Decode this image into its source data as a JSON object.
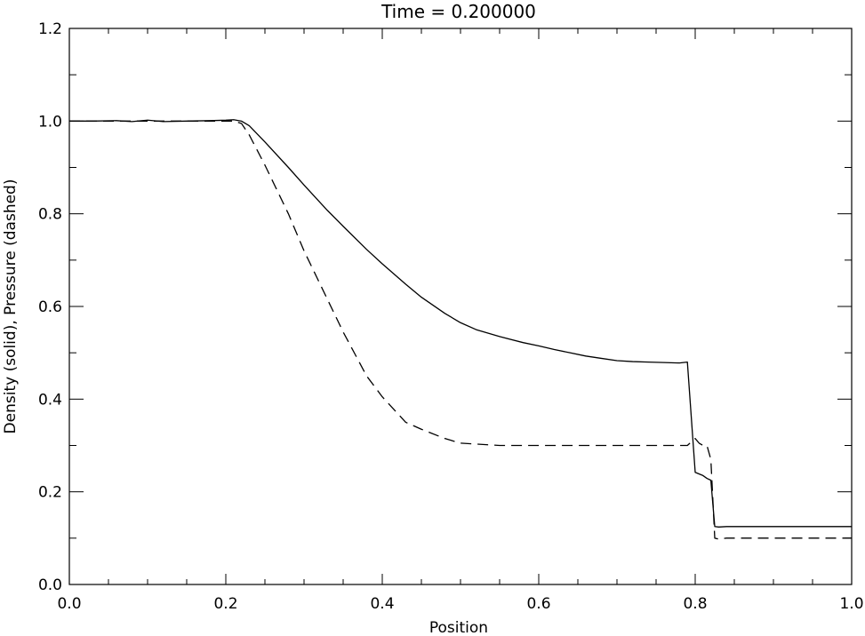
{
  "chart_data": {
    "type": "line",
    "title": "Time  =  0.200000",
    "xlabel": "Position",
    "ylabel": "Density (solid), Pressure (dashed)",
    "xlim": [
      0.0,
      1.0
    ],
    "ylim": [
      0.0,
      1.2
    ],
    "grid": false,
    "x_ticks": [
      0.0,
      0.2,
      0.4,
      0.6,
      0.8,
      1.0
    ],
    "x_tick_labels": [
      "0.0",
      "0.2",
      "0.4",
      "0.6",
      "0.8",
      "1.0"
    ],
    "y_ticks": [
      0.0,
      0.2,
      0.4,
      0.6,
      0.8,
      1.0,
      1.2
    ],
    "y_tick_labels": [
      "0.0",
      "0.2",
      "0.4",
      "0.6",
      "0.8",
      "1.0",
      "1.2"
    ],
    "series": [
      {
        "style": "solid",
        "color": "#000000",
        "x": [
          0.0,
          0.03,
          0.06,
          0.08,
          0.1,
          0.12,
          0.15,
          0.18,
          0.2,
          0.21,
          0.22,
          0.23,
          0.25,
          0.28,
          0.3,
          0.33,
          0.35,
          0.38,
          0.4,
          0.43,
          0.45,
          0.48,
          0.5,
          0.52,
          0.55,
          0.58,
          0.6,
          0.62,
          0.64,
          0.66,
          0.68,
          0.7,
          0.72,
          0.74,
          0.76,
          0.78,
          0.79,
          0.8,
          0.81,
          0.815,
          0.82,
          0.825,
          0.83,
          0.84,
          0.86,
          0.9,
          0.95,
          1.0
        ],
        "y": [
          1.0,
          1.0,
          1.001,
          0.999,
          1.002,
          0.999,
          1.0,
          1.001,
          1.002,
          1.003,
          1.0,
          0.99,
          0.955,
          0.9,
          0.862,
          0.807,
          0.773,
          0.723,
          0.692,
          0.648,
          0.62,
          0.585,
          0.565,
          0.55,
          0.535,
          0.522,
          0.515,
          0.507,
          0.5,
          0.493,
          0.488,
          0.483,
          0.481,
          0.48,
          0.479,
          0.478,
          0.48,
          0.242,
          0.235,
          0.229,
          0.225,
          0.125,
          0.124,
          0.125,
          0.125,
          0.125,
          0.125,
          0.125
        ]
      },
      {
        "style": "dashed",
        "color": "#000000",
        "x": [
          0.0,
          0.05,
          0.1,
          0.15,
          0.2,
          0.21,
          0.22,
          0.23,
          0.25,
          0.28,
          0.3,
          0.33,
          0.35,
          0.38,
          0.4,
          0.43,
          0.45,
          0.48,
          0.5,
          0.55,
          0.6,
          0.65,
          0.7,
          0.75,
          0.78,
          0.79,
          0.8,
          0.805,
          0.81,
          0.815,
          0.82,
          0.825,
          0.83,
          0.84,
          0.86,
          0.9,
          0.95,
          1.0
        ],
        "y": [
          1.0,
          1.0,
          1.0,
          1.0,
          1.0,
          1.0,
          0.995,
          0.97,
          0.905,
          0.8,
          0.72,
          0.615,
          0.545,
          0.45,
          0.405,
          0.35,
          0.335,
          0.315,
          0.305,
          0.3,
          0.3,
          0.3,
          0.3,
          0.3,
          0.3,
          0.3,
          0.315,
          0.305,
          0.3,
          0.3,
          0.27,
          0.1,
          0.098,
          0.1,
          0.1,
          0.1,
          0.1,
          0.1
        ]
      }
    ]
  }
}
